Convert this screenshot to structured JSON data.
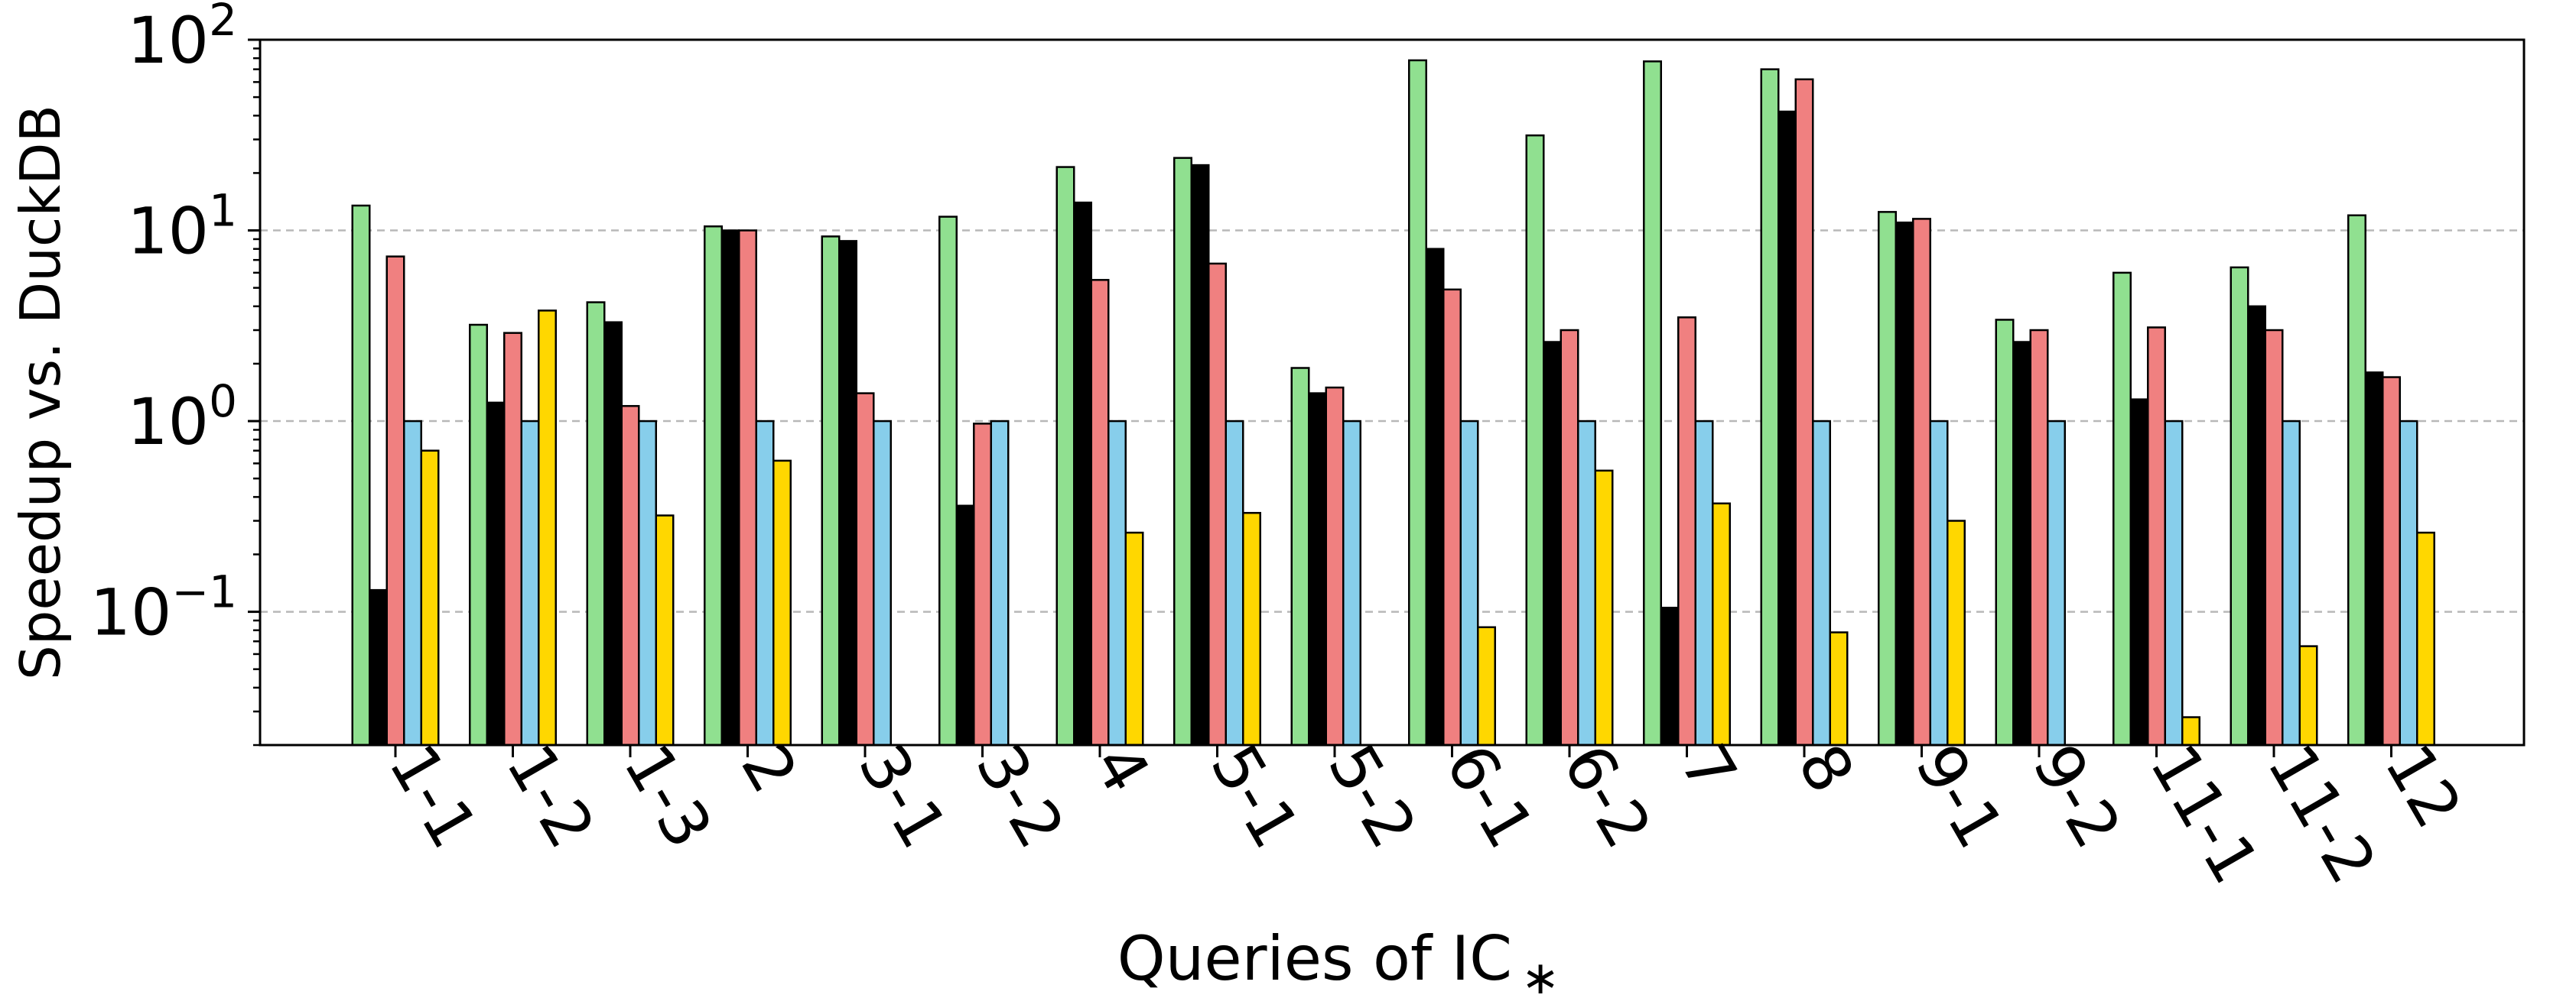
{
  "chart_data": {
    "type": "bar",
    "title": "",
    "xlabel": "Queries of IC",
    "xlabel_suffix": "∗",
    "ylabel": "Speedup vs. DuckDB",
    "yscale": "log",
    "ylim": [
      0.02,
      100
    ],
    "y_ticks": [
      {
        "value": 100,
        "base": "10",
        "exp": "2"
      },
      {
        "value": 10,
        "base": "10",
        "exp": "1"
      },
      {
        "value": 1,
        "base": "10",
        "exp": "0"
      },
      {
        "value": 0.1,
        "base": "10",
        "exp": "−1"
      }
    ],
    "grid": "y-major-dashed",
    "categories": [
      "1-1",
      "1-2",
      "1-3",
      "2",
      "3-1",
      "3-2",
      "4",
      "5-1",
      "5-2",
      "6-1",
      "6-2",
      "7",
      "8",
      "9-1",
      "9-2",
      "11-1",
      "11-2",
      "12"
    ],
    "series": [
      {
        "color": "#90e090",
        "values": [
          13.5,
          3.2,
          4.2,
          10.5,
          9.3,
          11.8,
          21.5,
          24.0,
          1.9,
          78.0,
          31.5,
          77.0,
          70.0,
          12.5,
          3.4,
          6.0,
          6.4,
          12.0
        ]
      },
      {
        "color": "#000000",
        "values": [
          0.13,
          1.25,
          3.3,
          10.0,
          8.8,
          0.36,
          14.0,
          22.0,
          1.4,
          8.0,
          2.6,
          0.105,
          42.0,
          11.0,
          2.6,
          1.3,
          4.0,
          1.8
        ]
      },
      {
        "color": "#f08080",
        "values": [
          7.3,
          2.9,
          1.2,
          10.0,
          1.4,
          0.97,
          5.5,
          6.7,
          1.5,
          4.9,
          3.0,
          3.5,
          62.0,
          11.5,
          3.0,
          3.1,
          3.0,
          1.7
        ]
      },
      {
        "color": "#87ceeb",
        "values": [
          1.0,
          1.0,
          1.0,
          1.0,
          1.0,
          1.0,
          1.0,
          1.0,
          1.0,
          1.0,
          1.0,
          1.0,
          1.0,
          1.0,
          1.0,
          1.0,
          1.0,
          1.0
        ]
      },
      {
        "color": "#ffd700",
        "values": [
          0.7,
          3.8,
          0.32,
          0.62,
          null,
          null,
          0.26,
          0.33,
          null,
          0.083,
          0.55,
          0.37,
          0.078,
          0.3,
          null,
          0.028,
          0.066,
          0.26
        ]
      }
    ]
  }
}
